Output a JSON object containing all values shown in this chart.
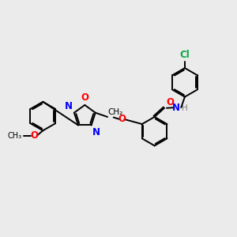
{
  "bg_color": "#ebebeb",
  "bond_color": "#000000",
  "oxygen_color": "#ff0000",
  "nitrogen_color": "#0000ff",
  "chlorine_color": "#00aa44",
  "hydrogen_color": "#808080",
  "bond_width": 1.4,
  "dbo": 0.055,
  "font_size": 8.5,
  "fig_size": [
    3.0,
    3.0
  ],
  "dpi": 100,
  "xlim": [
    0,
    10
  ],
  "ylim": [
    0,
    10
  ]
}
